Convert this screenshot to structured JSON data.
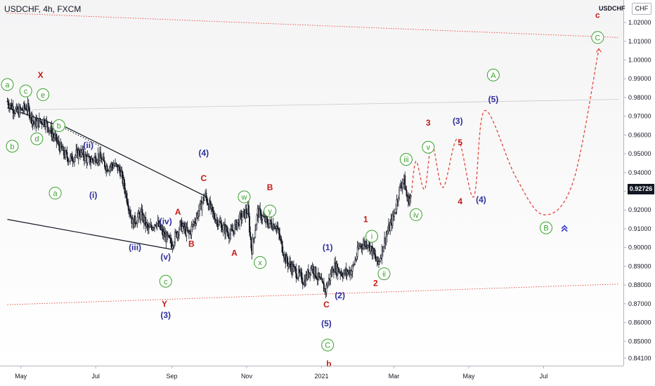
{
  "header": {
    "symbol_title": "USDCHF, 4h, FXCM",
    "symbol_short": "USDCHF",
    "currency": "CHF"
  },
  "last_price": "0.92726",
  "colors": {
    "candles": "#131722",
    "channel": "#e3493a",
    "projection": "#e3493a",
    "trendline": "#131722",
    "label_red": "#c41a16",
    "label_blue": "#2e2e9b",
    "label_green": "#39a02c",
    "price_tag_bg": "#131722"
  },
  "icons": {
    "double_chevron": "double-chevron-up-icon"
  },
  "chart_data": {
    "type": "candlestick",
    "title": "USDCHF, 4h, FXCM",
    "xlabel": "",
    "ylabel": "",
    "x_ticks": [
      "May",
      "Jul",
      "Sep",
      "Nov",
      "2021",
      "Mar",
      "May",
      "Jul"
    ],
    "y_ticks": [
      "0.84100",
      "0.85000",
      "0.86000",
      "0.87000",
      "0.88000",
      "0.89000",
      "0.90000",
      "0.91000",
      "0.92000",
      "0.93000",
      "0.94000",
      "0.95000",
      "0.96000",
      "0.97000",
      "0.98000",
      "0.99000",
      "1.00000",
      "1.01000",
      "1.02000"
    ],
    "ylim": [
      0.837,
      1.032
    ],
    "grid": true,
    "series": [
      {
        "price_path": [
          [
            "2020-04-20",
            0.978
          ],
          [
            "2020-04-28",
            0.972
          ],
          [
            "2020-05-06",
            0.975
          ],
          [
            "2020-05-12",
            0.966
          ],
          [
            "2020-05-20",
            0.968
          ],
          [
            "2020-05-29",
            0.958
          ],
          [
            "2020-06-05",
            0.95
          ],
          [
            "2020-06-10",
            0.947
          ],
          [
            "2020-06-18",
            0.951
          ],
          [
            "2020-06-26",
            0.946
          ],
          [
            "2020-07-03",
            0.949
          ],
          [
            "2020-07-10",
            0.943
          ],
          [
            "2020-07-16",
            0.944
          ],
          [
            "2020-07-21",
            0.941
          ],
          [
            "2020-07-27",
            0.925
          ],
          [
            "2020-07-31",
            0.913
          ],
          [
            "2020-08-07",
            0.918
          ],
          [
            "2020-08-13",
            0.909
          ],
          [
            "2020-08-19",
            0.914
          ],
          [
            "2020-08-25",
            0.907
          ],
          [
            "2020-09-01",
            0.902
          ],
          [
            "2020-09-08",
            0.912
          ],
          [
            "2020-09-15",
            0.907
          ],
          [
            "2020-09-22",
            0.918
          ],
          [
            "2020-09-28",
            0.928
          ],
          [
            "2020-10-05",
            0.917
          ],
          [
            "2020-10-12",
            0.911
          ],
          [
            "2020-10-19",
            0.907
          ],
          [
            "2020-10-26",
            0.915
          ],
          [
            "2020-11-02",
            0.92
          ],
          [
            "2020-11-05",
            0.898
          ],
          [
            "2020-11-10",
            0.919
          ],
          [
            "2020-11-18",
            0.913
          ],
          [
            "2020-11-25",
            0.912
          ],
          [
            "2020-12-03",
            0.893
          ],
          [
            "2020-12-11",
            0.887
          ],
          [
            "2020-12-18",
            0.882
          ],
          [
            "2020-12-24",
            0.89
          ],
          [
            "2021-01-04",
            0.877
          ],
          [
            "2021-01-11",
            0.89
          ],
          [
            "2021-01-19",
            0.886
          ],
          [
            "2021-01-26",
            0.888
          ],
          [
            "2021-02-01",
            0.901
          ],
          [
            "2021-02-08",
            0.903
          ],
          [
            "2021-02-16",
            0.891
          ],
          [
            "2021-02-22",
            0.905
          ],
          [
            "2021-03-01",
            0.917
          ],
          [
            "2021-03-05",
            0.93
          ],
          [
            "2021-03-09",
            0.937
          ],
          [
            "2021-03-12",
            0.925
          ],
          [
            "2021-03-15",
            0.927
          ]
        ]
      }
    ],
    "projection": [
      [
        "2021-03-15",
        0.9265
      ],
      [
        "2021-03-19",
        0.946
      ],
      [
        "2021-03-26",
        0.931
      ],
      [
        "2021-04-01",
        0.955
      ],
      [
        "2021-04-10",
        0.932
      ],
      [
        "2021-04-22",
        0.958
      ],
      [
        "2021-05-05",
        0.927
      ],
      [
        "2021-05-14",
        0.973
      ],
      [
        "2021-06-08",
        0.938
      ],
      [
        "2021-07-01",
        0.9175
      ],
      [
        "2021-07-25",
        0.935
      ],
      [
        "2021-08-15",
        1.006
      ]
    ],
    "channel_lines": [
      [
        [
          "2020-04-20",
          1.025
        ],
        [
          "2021-08-31",
          1.012
        ]
      ],
      [
        [
          "2020-04-20",
          0.8695
        ],
        [
          "2021-08-31",
          0.8805
        ]
      ],
      [
        [
          "2020-05-10",
          0.9735
        ],
        [
          "2021-08-31",
          0.979
        ]
      ]
    ],
    "trend_lines": [
      [
        [
          "2020-04-20",
          0.9745
        ],
        [
          "2020-06-01",
          0.965
        ]
      ],
      [
        [
          "2020-06-01",
          0.966
        ],
        [
          "2020-09-28",
          0.9275
        ]
      ],
      [
        [
          "2020-04-20",
          0.915
        ],
        [
          "2020-09-01",
          0.899
        ]
      ]
    ],
    "wave_labels": [
      {
        "text": "a",
        "date": "2020-04-20",
        "price": 0.9869,
        "color": "green",
        "circled": true
      },
      {
        "text": "b",
        "date": "2020-04-24",
        "price": 0.954,
        "color": "green",
        "circled": true
      },
      {
        "text": "c",
        "date": "2020-05-05",
        "price": 0.9835,
        "color": "green",
        "circled": true
      },
      {
        "text": "d",
        "date": "2020-05-14",
        "price": 0.958,
        "color": "green",
        "circled": true
      },
      {
        "text": "X",
        "date": "2020-05-17",
        "price": 0.992,
        "color": "red",
        "circled": false
      },
      {
        "text": "e",
        "date": "2020-05-19",
        "price": 0.9815,
        "color": "green",
        "circled": true
      },
      {
        "text": "b",
        "date": "2020-06-01",
        "price": 0.965,
        "color": "green",
        "circled": true
      },
      {
        "text": "a",
        "date": "2020-05-29",
        "price": 0.929,
        "color": "green",
        "circled": true
      },
      {
        "text": "(ii)",
        "date": "2020-06-25",
        "price": 0.9545,
        "color": "blue",
        "circled": false
      },
      {
        "text": "(i)",
        "date": "2020-06-29",
        "price": 0.928,
        "color": "blue",
        "circled": false
      },
      {
        "text": "(iii)",
        "date": "2020-08-02",
        "price": 0.9,
        "color": "blue",
        "circled": false
      },
      {
        "text": "(iv)",
        "date": "2020-08-27",
        "price": 0.914,
        "color": "blue",
        "circled": false
      },
      {
        "text": "A",
        "date": "2020-09-06",
        "price": 0.919,
        "color": "red",
        "circled": false
      },
      {
        "text": "(v)",
        "date": "2020-08-27",
        "price": 0.895,
        "color": "blue",
        "circled": false
      },
      {
        "text": "c",
        "date": "2020-08-27",
        "price": 0.882,
        "color": "green",
        "circled": true
      },
      {
        "text": "Y",
        "date": "2020-08-26",
        "price": 0.87,
        "color": "red",
        "circled": false
      },
      {
        "text": "(3)",
        "date": "2020-08-27",
        "price": 0.864,
        "color": "blue",
        "circled": false
      },
      {
        "text": "B",
        "date": "2020-09-17",
        "price": 0.902,
        "color": "red",
        "circled": false
      },
      {
        "text": "(4)",
        "date": "2020-09-27",
        "price": 0.9505,
        "color": "blue",
        "circled": false
      },
      {
        "text": "C",
        "date": "2020-09-27",
        "price": 0.937,
        "color": "red",
        "circled": false
      },
      {
        "text": "A",
        "date": "2020-10-22",
        "price": 0.897,
        "color": "red",
        "circled": false
      },
      {
        "text": "w",
        "date": "2020-10-30",
        "price": 0.927,
        "color": "green",
        "circled": true
      },
      {
        "text": "x",
        "date": "2020-11-12",
        "price": 0.892,
        "color": "green",
        "circled": true
      },
      {
        "text": "B",
        "date": "2020-11-20",
        "price": 0.932,
        "color": "red",
        "circled": false
      },
      {
        "text": "y",
        "date": "2020-11-20",
        "price": 0.9195,
        "color": "green",
        "circled": true
      },
      {
        "text": "(1)",
        "date": "2021-01-06",
        "price": 0.9,
        "color": "blue",
        "circled": false
      },
      {
        "text": "(2)",
        "date": "2021-01-16",
        "price": 0.8745,
        "color": "blue",
        "circled": false
      },
      {
        "text": "C",
        "date": "2021-01-05",
        "price": 0.8695,
        "color": "red",
        "circled": false
      },
      {
        "text": "(5)",
        "date": "2021-01-05",
        "price": 0.8595,
        "color": "blue",
        "circled": false
      },
      {
        "text": "C",
        "date": "2021-01-06",
        "price": 0.848,
        "color": "green",
        "circled": true
      },
      {
        "text": "b",
        "date": "2021-01-07",
        "price": 0.838,
        "color": "red",
        "circled": false
      },
      {
        "text": "1",
        "date": "2021-02-06",
        "price": 0.915,
        "color": "red",
        "circled": false
      },
      {
        "text": "i",
        "date": "2021-02-11",
        "price": 0.906,
        "color": "green",
        "circled": true
      },
      {
        "text": "2",
        "date": "2021-02-14",
        "price": 0.881,
        "color": "red",
        "circled": false
      },
      {
        "text": "ii",
        "date": "2021-02-21",
        "price": 0.886,
        "color": "green",
        "circled": true
      },
      {
        "text": "iii",
        "date": "2021-03-11",
        "price": 0.947,
        "color": "green",
        "circled": true
      },
      {
        "text": "iv",
        "date": "2021-03-19",
        "price": 0.9175,
        "color": "green",
        "circled": true
      },
      {
        "text": "3",
        "date": "2021-03-29",
        "price": 0.9665,
        "color": "red",
        "circled": false
      },
      {
        "text": "v",
        "date": "2021-03-29",
        "price": 0.9535,
        "color": "green",
        "circled": true
      },
      {
        "text": "4",
        "date": "2021-04-24",
        "price": 0.9245,
        "color": "red",
        "circled": false
      },
      {
        "text": "(3)",
        "date": "2021-04-22",
        "price": 0.9675,
        "color": "blue",
        "circled": false
      },
      {
        "text": "5",
        "date": "2021-04-24",
        "price": 0.956,
        "color": "red",
        "circled": false
      },
      {
        "text": "(4)",
        "date": "2021-05-11",
        "price": 0.9255,
        "color": "blue",
        "circled": false
      },
      {
        "text": "A",
        "date": "2021-05-21",
        "price": 0.992,
        "color": "green",
        "circled": true
      },
      {
        "text": "(5)",
        "date": "2021-05-21",
        "price": 0.979,
        "color": "blue",
        "circled": false
      },
      {
        "text": "B",
        "date": "2021-07-03",
        "price": 0.9105,
        "color": "green",
        "circled": true
      },
      {
        "text": "c",
        "date": "2021-08-14",
        "price": 1.024,
        "color": "red",
        "circled": false
      },
      {
        "text": "C",
        "date": "2021-08-14",
        "price": 1.012,
        "color": "green",
        "circled": true
      }
    ]
  }
}
